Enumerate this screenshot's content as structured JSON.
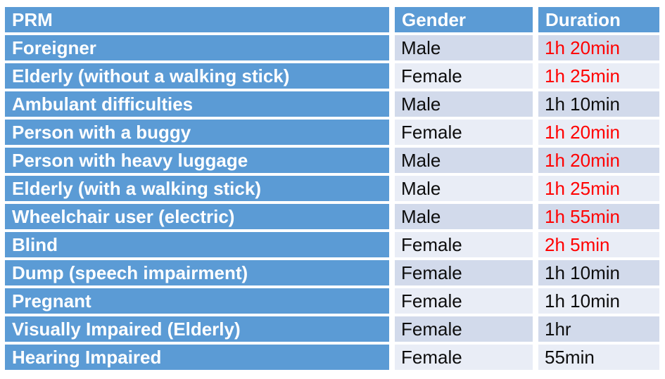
{
  "chart_data": {
    "type": "table",
    "columns": [
      "PRM",
      "Gender",
      "Duration"
    ],
    "rows": [
      {
        "prm": "Foreigner",
        "gender": "Male",
        "duration": "1h 20min",
        "red": true
      },
      {
        "prm": "Elderly (without a walking stick)",
        "gender": "Female",
        "duration": "1h 25min",
        "red": true
      },
      {
        "prm": "Ambulant difficulties",
        "gender": "Male",
        "duration": "1h 10min",
        "red": false
      },
      {
        "prm": "Person with a buggy",
        "gender": "Female",
        "duration": "1h 20min",
        "red": true
      },
      {
        "prm": "Person with heavy luggage",
        "gender": "Male",
        "duration": "1h 20min",
        "red": true
      },
      {
        "prm": "Elderly (with a walking stick)",
        "gender": "Male",
        "duration": "1h 25min",
        "red": true
      },
      {
        "prm": "Wheelchair user (electric)",
        "gender": "Male",
        "duration": "1h 55min",
        "red": true
      },
      {
        "prm": "Blind",
        "gender": "Female",
        "duration": "2h 5min",
        "red": true
      },
      {
        "prm": "Dump (speech impairment)",
        "gender": "Female",
        "duration": "1h 10min",
        "red": false
      },
      {
        "prm": "Pregnant",
        "gender": "Female",
        "duration": "1h 10min",
        "red": false
      },
      {
        "prm": "Visually Impaired (Elderly)",
        "gender": "Female",
        "duration": "1hr",
        "red": false
      },
      {
        "prm": "Hearing Impaired",
        "gender": "Female",
        "duration": "55min",
        "red": false
      }
    ],
    "layout_hints": {
      "header_style": "blue background, white bold text",
      "first_column_style": "blue background, white bold text",
      "data_rows": "banded light blue, odd rows darker",
      "red_durations_meaning": "durations shown in red text"
    }
  },
  "colors": {
    "blue": "#5b9bd5",
    "band_dark": "#d2daeb",
    "band_light": "#e9edf6",
    "red": "#ff0000",
    "ink": "#0d0d0d"
  }
}
